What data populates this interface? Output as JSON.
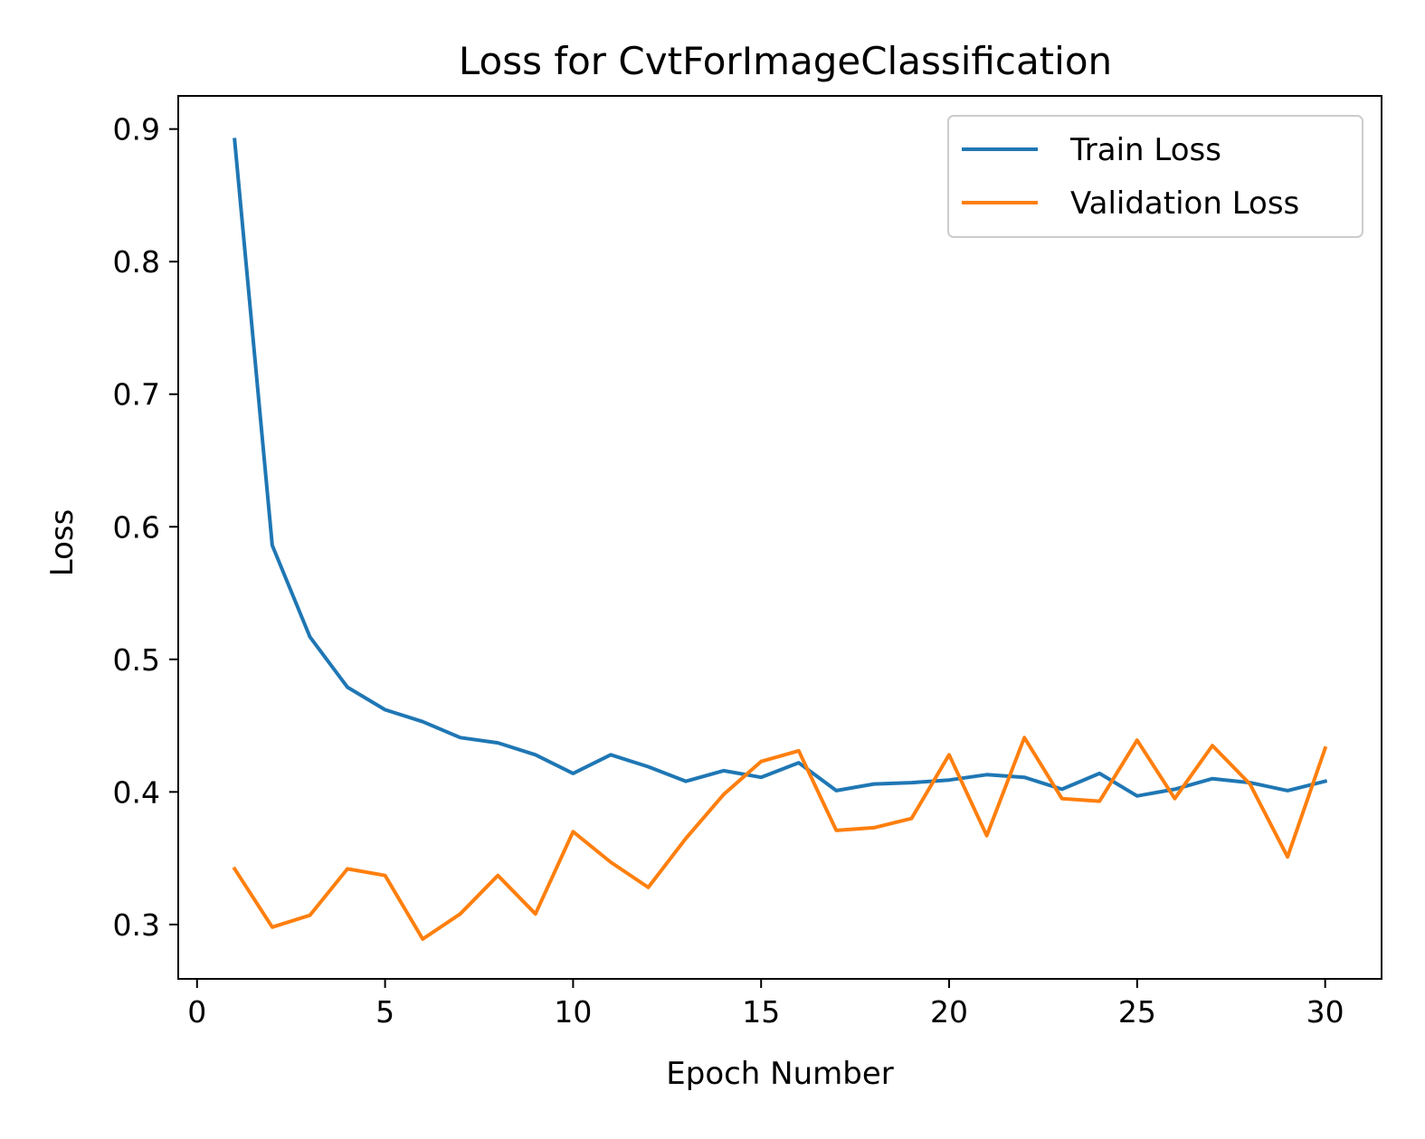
{
  "chart_data": {
    "type": "line",
    "title": "Loss for CvtForImageClassification",
    "xlabel": "Epoch Number",
    "ylabel": "Loss",
    "xlim": [
      -0.5,
      31.5
    ],
    "ylim": [
      0.259,
      0.925
    ],
    "xticks": [
      0,
      5,
      10,
      15,
      20,
      25,
      30
    ],
    "yticks": [
      0.3,
      0.4,
      0.5,
      0.6,
      0.7,
      0.8,
      0.9
    ],
    "grid": false,
    "legend_position": "top-right",
    "x": [
      1,
      2,
      3,
      4,
      5,
      6,
      7,
      8,
      9,
      10,
      11,
      12,
      13,
      14,
      15,
      16,
      17,
      18,
      19,
      20,
      21,
      22,
      23,
      24,
      25,
      26,
      27,
      28,
      29,
      30
    ],
    "series": [
      {
        "name": "Train Loss",
        "color": "#1f77b4",
        "values": [
          0.892,
          0.586,
          0.517,
          0.479,
          0.462,
          0.453,
          0.441,
          0.437,
          0.428,
          0.414,
          0.428,
          0.419,
          0.408,
          0.416,
          0.411,
          0.422,
          0.401,
          0.406,
          0.407,
          0.409,
          0.413,
          0.411,
          0.402,
          0.414,
          0.397,
          0.402,
          0.41,
          0.407,
          0.401,
          0.408
        ]
      },
      {
        "name": "Validation Loss",
        "color": "#ff7f0e",
        "values": [
          0.342,
          0.298,
          0.307,
          0.342,
          0.337,
          0.289,
          0.308,
          0.337,
          0.308,
          0.37,
          0.347,
          0.328,
          0.365,
          0.398,
          0.423,
          0.431,
          0.371,
          0.373,
          0.38,
          0.428,
          0.367,
          0.441,
          0.395,
          0.393,
          0.439,
          0.395,
          0.435,
          0.406,
          0.351,
          0.433
        ]
      }
    ]
  }
}
